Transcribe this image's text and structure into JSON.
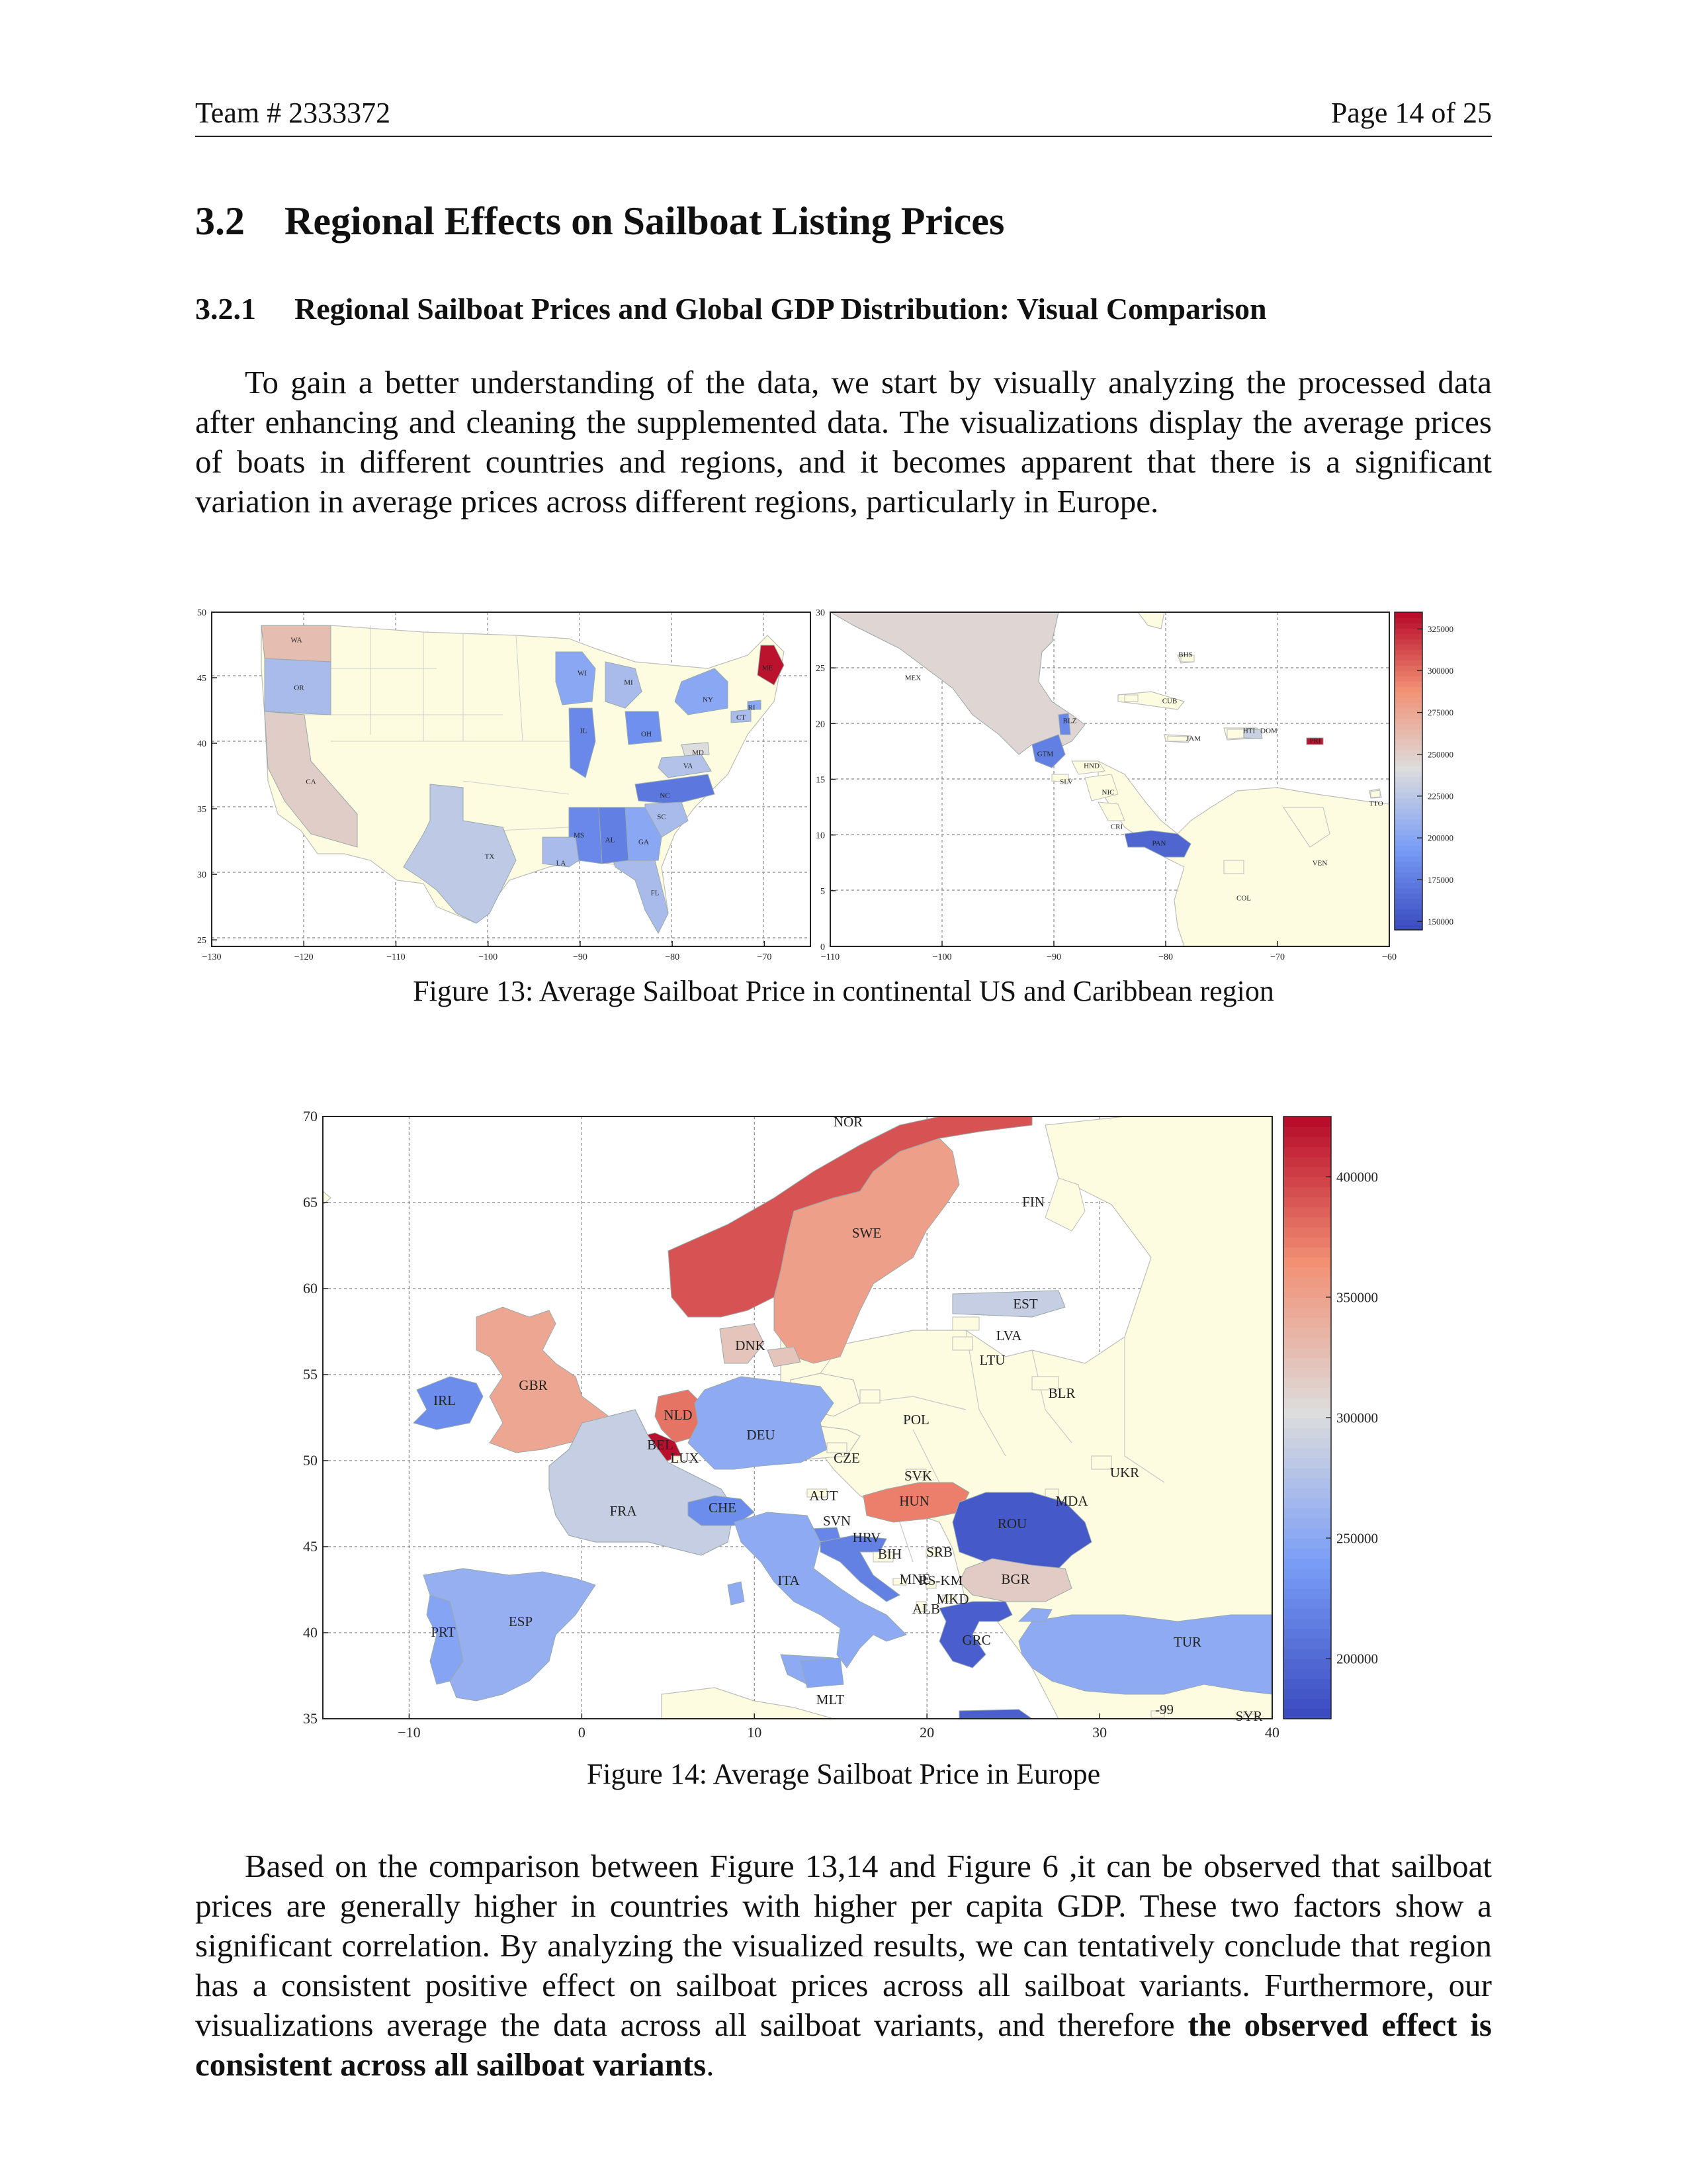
{
  "header": {
    "team": "Team # 2333372",
    "page": "Page 14 of 25"
  },
  "section": {
    "number": "3.2",
    "title": "Regional Effects on Sailboat Listing Prices"
  },
  "subsection": {
    "number": "3.2.1",
    "title": "Regional Sailboat Prices and Global GDP Distribution: Visual Comparison"
  },
  "intro_paragraph": "To gain a better understanding of the data, we start by visually analyzing the processed data after enhancing and cleaning the supplemented data. The visualizations display the average prices of boats in different countries and regions, and it becomes apparent that there is a significant variation in average prices across different regions, particularly in Europe.",
  "figure13": {
    "caption": "Figure 13: Average Sailboat Price in continental US and Caribbean region"
  },
  "figure14": {
    "caption": "Figure 14: Average Sailboat Price in Europe"
  },
  "conclusion": {
    "text": "Based on the comparison between Figure 13,14 and Figure 6 ,it can be observed that sailboat prices are generally higher in countries with higher per capita GDP. These two factors show a significant correlation. By analyzing the visualized results, we can tentatively conclude that region has a consistent positive effect on sailboat prices across all sailboat variants. Furthermore, our visualizations average the data across all sailboat variants, and therefore ",
    "bold": "the observed effect is consistent across all sailboat variants",
    "end": "."
  },
  "chart_data": [
    {
      "type": "heatmap",
      "title": "",
      "xlabel": "",
      "ylabel": "",
      "xlim": [
        -130,
        -65
      ],
      "ylim": [
        24.5,
        50
      ],
      "xticks": [
        -130,
        -120,
        -110,
        -100,
        -90,
        -80,
        -70
      ],
      "yticks": [
        25,
        30,
        35,
        40,
        45,
        50
      ],
      "regions": [
        {
          "label": "WA",
          "value": 260000
        },
        {
          "label": "OR",
          "value": 215000
        },
        {
          "label": "CA",
          "value": 250000
        },
        {
          "label": "TX",
          "value": 225000
        },
        {
          "label": "LA",
          "value": 215000
        },
        {
          "label": "FL",
          "value": 215000
        },
        {
          "label": "WI",
          "value": 200000
        },
        {
          "label": "MI",
          "value": 215000
        },
        {
          "label": "IL",
          "value": 180000
        },
        {
          "label": "OH",
          "value": 185000
        },
        {
          "label": "NY",
          "value": 200000
        },
        {
          "label": "ME",
          "value": 330000
        },
        {
          "label": "CT",
          "value": 215000
        },
        {
          "label": "RI",
          "value": 200000
        },
        {
          "label": "MD",
          "value": 240000
        },
        {
          "label": "VA",
          "value": 220000
        },
        {
          "label": "NC",
          "value": 170000
        },
        {
          "label": "SC",
          "value": 215000
        },
        {
          "label": "GA",
          "value": 200000
        },
        {
          "label": "AL",
          "value": 175000
        },
        {
          "label": "MS",
          "value": 180000
        }
      ]
    },
    {
      "type": "heatmap",
      "title": "",
      "xlim": [
        -110,
        -60
      ],
      "ylim": [
        0,
        30
      ],
      "xticks": [
        -110,
        -100,
        -90,
        -80,
        -70,
        -60
      ],
      "yticks": [
        0,
        5,
        10,
        15,
        20,
        25,
        30
      ],
      "colorbar": {
        "min": 145000,
        "max": 335000,
        "ticks": [
          150000,
          175000,
          200000,
          225000,
          250000,
          275000,
          300000,
          325000
        ]
      },
      "regions": [
        {
          "label": "MEX",
          "value": 245000
        },
        {
          "label": "BLZ",
          "value": 180000
        },
        {
          "label": "GTM",
          "value": 175000
        },
        {
          "label": "HND",
          "value": null
        },
        {
          "label": "SLV",
          "value": null
        },
        {
          "label": "NIC",
          "value": null
        },
        {
          "label": "CRI",
          "value": null
        },
        {
          "label": "PAN",
          "value": 160000
        },
        {
          "label": "BHS",
          "value": null
        },
        {
          "label": "CUB",
          "value": null
        },
        {
          "label": "JAM",
          "value": null
        },
        {
          "label": "HTI",
          "value": null
        },
        {
          "label": "DOM",
          "value": 230000
        },
        {
          "label": "PRI",
          "value": 330000
        },
        {
          "label": "TTO",
          "value": null
        },
        {
          "label": "VEN",
          "value": null
        },
        {
          "label": "COL",
          "value": null
        }
      ]
    },
    {
      "type": "heatmap",
      "title": "",
      "xlim": [
        -15,
        40
      ],
      "ylim": [
        35,
        70
      ],
      "xticks": [
        -10,
        0,
        10,
        20,
        30,
        40
      ],
      "yticks": [
        35,
        40,
        45,
        50,
        55,
        60,
        65,
        70
      ],
      "colorbar": {
        "min": 175000,
        "max": 425000,
        "ticks": [
          200000,
          250000,
          300000,
          350000,
          400000
        ]
      },
      "regions": [
        {
          "label": "NOR",
          "value": 390000
        },
        {
          "label": "SWE",
          "value": 350000
        },
        {
          "label": "FIN",
          "value": null
        },
        {
          "label": "EST",
          "value": 285000
        },
        {
          "label": "LVA",
          "value": null
        },
        {
          "label": "LTU",
          "value": null
        },
        {
          "label": "BLR",
          "value": null
        },
        {
          "label": "DNK",
          "value": 320000
        },
        {
          "label": "GBR",
          "value": 345000
        },
        {
          "label": "IRL",
          "value": 225000
        },
        {
          "label": "NLD",
          "value": 375000
        },
        {
          "label": "BEL",
          "value": 420000
        },
        {
          "label": "LUX",
          "value": null
        },
        {
          "label": "DEU",
          "value": 250000
        },
        {
          "label": "POL",
          "value": null
        },
        {
          "label": "UKR",
          "value": null
        },
        {
          "label": "CZE",
          "value": null
        },
        {
          "label": "SVK",
          "value": null
        },
        {
          "label": "AUT",
          "value": null
        },
        {
          "label": "HUN",
          "value": 370000
        },
        {
          "label": "MDA",
          "value": null
        },
        {
          "label": "ROU",
          "value": 185000
        },
        {
          "label": "FRA",
          "value": 285000
        },
        {
          "label": "CHE",
          "value": 225000
        },
        {
          "label": "SVN",
          "value": 220000
        },
        {
          "label": "HRV",
          "value": 215000
        },
        {
          "label": "BIH",
          "value": null
        },
        {
          "label": "SRB",
          "value": null
        },
        {
          "label": "MNE",
          "value": null
        },
        {
          "label": "RS-KM",
          "value": null
        },
        {
          "label": "BGR",
          "value": 315000
        },
        {
          "label": "MKD",
          "value": null
        },
        {
          "label": "ALB",
          "value": null
        },
        {
          "label": "ITA",
          "value": 250000
        },
        {
          "label": "GRC",
          "value": 190000
        },
        {
          "label": "TUR",
          "value": 250000
        },
        {
          "label": "ESP",
          "value": 255000
        },
        {
          "label": "PRT",
          "value": 245000
        },
        {
          "label": "MLT",
          "value": 245000
        },
        {
          "label": "-99",
          "value": null
        },
        {
          "label": "SYR",
          "value": null
        }
      ]
    }
  ]
}
